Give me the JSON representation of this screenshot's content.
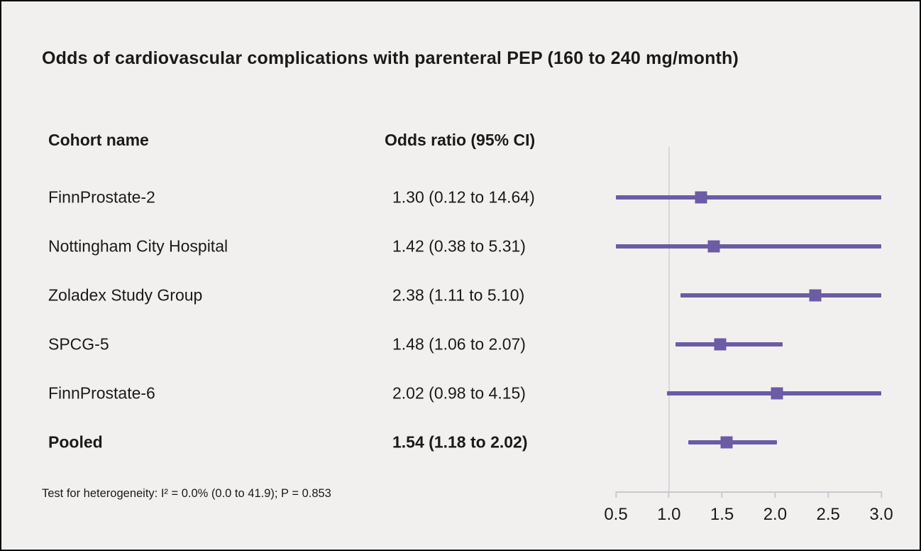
{
  "columns": {
    "cohort": "Cohort name",
    "odds_ratio": "Odds ratio (95% CI)"
  },
  "colors": {
    "accent": "#6b5ca5",
    "background": "#f2f0ee",
    "reference_line": "#d8d7de",
    "axis": "#c9c9ce",
    "text": "#1a1a1a"
  },
  "chart_data": {
    "type": "forest",
    "title": "Odds of cardiovascular complications with parenteral PEP (160 to 240 mg/month)",
    "x_axis": {
      "min": 0.5,
      "max": 3.0,
      "scale": "linear",
      "reference_line": 1.0,
      "ticks": [
        {
          "value": 0.5,
          "label": "0.5"
        },
        {
          "value": 1.0,
          "label": "1.0"
        },
        {
          "value": 1.5,
          "label": "1.5"
        },
        {
          "value": 2.0,
          "label": "2.0"
        },
        {
          "value": 2.5,
          "label": "2.5"
        },
        {
          "value": 3.0,
          "label": "3.0"
        }
      ]
    },
    "rows": [
      {
        "cohort": "FinnProstate-2",
        "label": "1.30 (0.12 to 14.64)",
        "or": 1.3,
        "ci_low": 0.12,
        "ci_high": 14.64,
        "pooled": false
      },
      {
        "cohort": "Nottingham City Hospital",
        "label": "1.42 (0.38 to 5.31)",
        "or": 1.42,
        "ci_low": 0.38,
        "ci_high": 5.31,
        "pooled": false
      },
      {
        "cohort": "Zoladex Study Group",
        "label": "2.38 (1.11 to 5.10)",
        "or": 2.38,
        "ci_low": 1.11,
        "ci_high": 5.1,
        "pooled": false
      },
      {
        "cohort": "SPCG-5",
        "label": "1.48 (1.06 to 2.07)",
        "or": 1.48,
        "ci_low": 1.06,
        "ci_high": 2.07,
        "pooled": false
      },
      {
        "cohort": "FinnProstate-6",
        "label": "2.02 (0.98 to 4.15)",
        "or": 2.02,
        "ci_low": 0.98,
        "ci_high": 4.15,
        "pooled": false
      },
      {
        "cohort": "Pooled",
        "label": "1.54 (1.18 to 2.02)",
        "or": 1.54,
        "ci_low": 1.18,
        "ci_high": 2.02,
        "pooled": true
      }
    ],
    "heterogeneity": "Test for heterogeneity: I² = 0.0% (0.0 to 41.9); P = 0.853"
  }
}
